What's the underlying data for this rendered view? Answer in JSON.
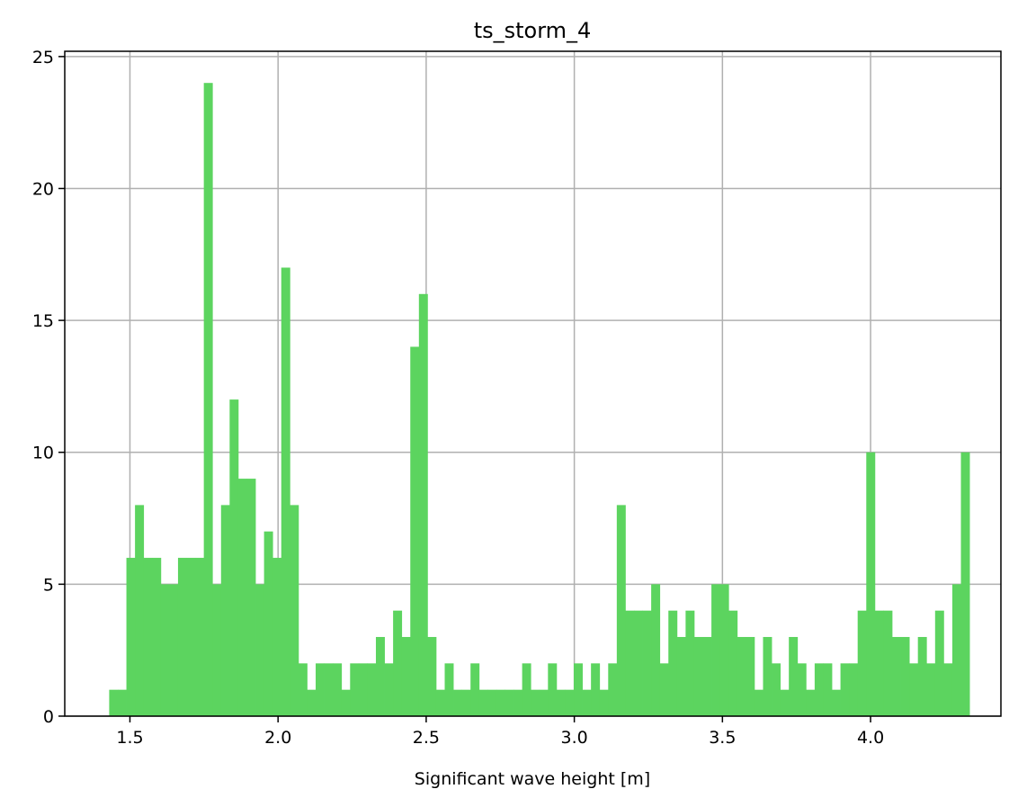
{
  "chart_data": {
    "type": "bar",
    "subtype": "histogram",
    "title": "ts_storm_4",
    "xlabel": "Significant wave height [m]",
    "ylabel": "",
    "xlim": [
      1.28,
      4.44
    ],
    "ylim": [
      0,
      25.2
    ],
    "xticks": [
      "1.5",
      "2.0",
      "2.5",
      "3.0",
      "3.5",
      "4.0"
    ],
    "yticks": [
      "0",
      "5",
      "10",
      "15",
      "20",
      "25"
    ],
    "grid": true,
    "bar_color": "#5cd45f",
    "bin_start": 1.43,
    "bin_width": 0.02904,
    "counts": [
      1,
      1,
      6,
      8,
      6,
      6,
      5,
      5,
      6,
      6,
      6,
      24,
      5,
      8,
      12,
      9,
      9,
      5,
      7,
      6,
      17,
      8,
      2,
      1,
      2,
      2,
      2,
      1,
      2,
      2,
      2,
      3,
      2,
      4,
      3,
      14,
      16,
      3,
      1,
      2,
      1,
      1,
      2,
      1,
      1,
      1,
      1,
      1,
      2,
      1,
      1,
      2,
      1,
      1,
      2,
      1,
      2,
      1,
      2,
      8,
      4,
      4,
      4,
      5,
      2,
      4,
      3,
      4,
      3,
      3,
      5,
      5,
      4,
      3,
      3,
      1,
      3,
      2,
      1,
      3,
      2,
      1,
      2,
      2,
      1,
      2,
      2,
      4,
      10,
      4,
      4,
      3,
      3,
      2,
      3,
      2,
      4,
      2,
      5,
      10
    ]
  }
}
